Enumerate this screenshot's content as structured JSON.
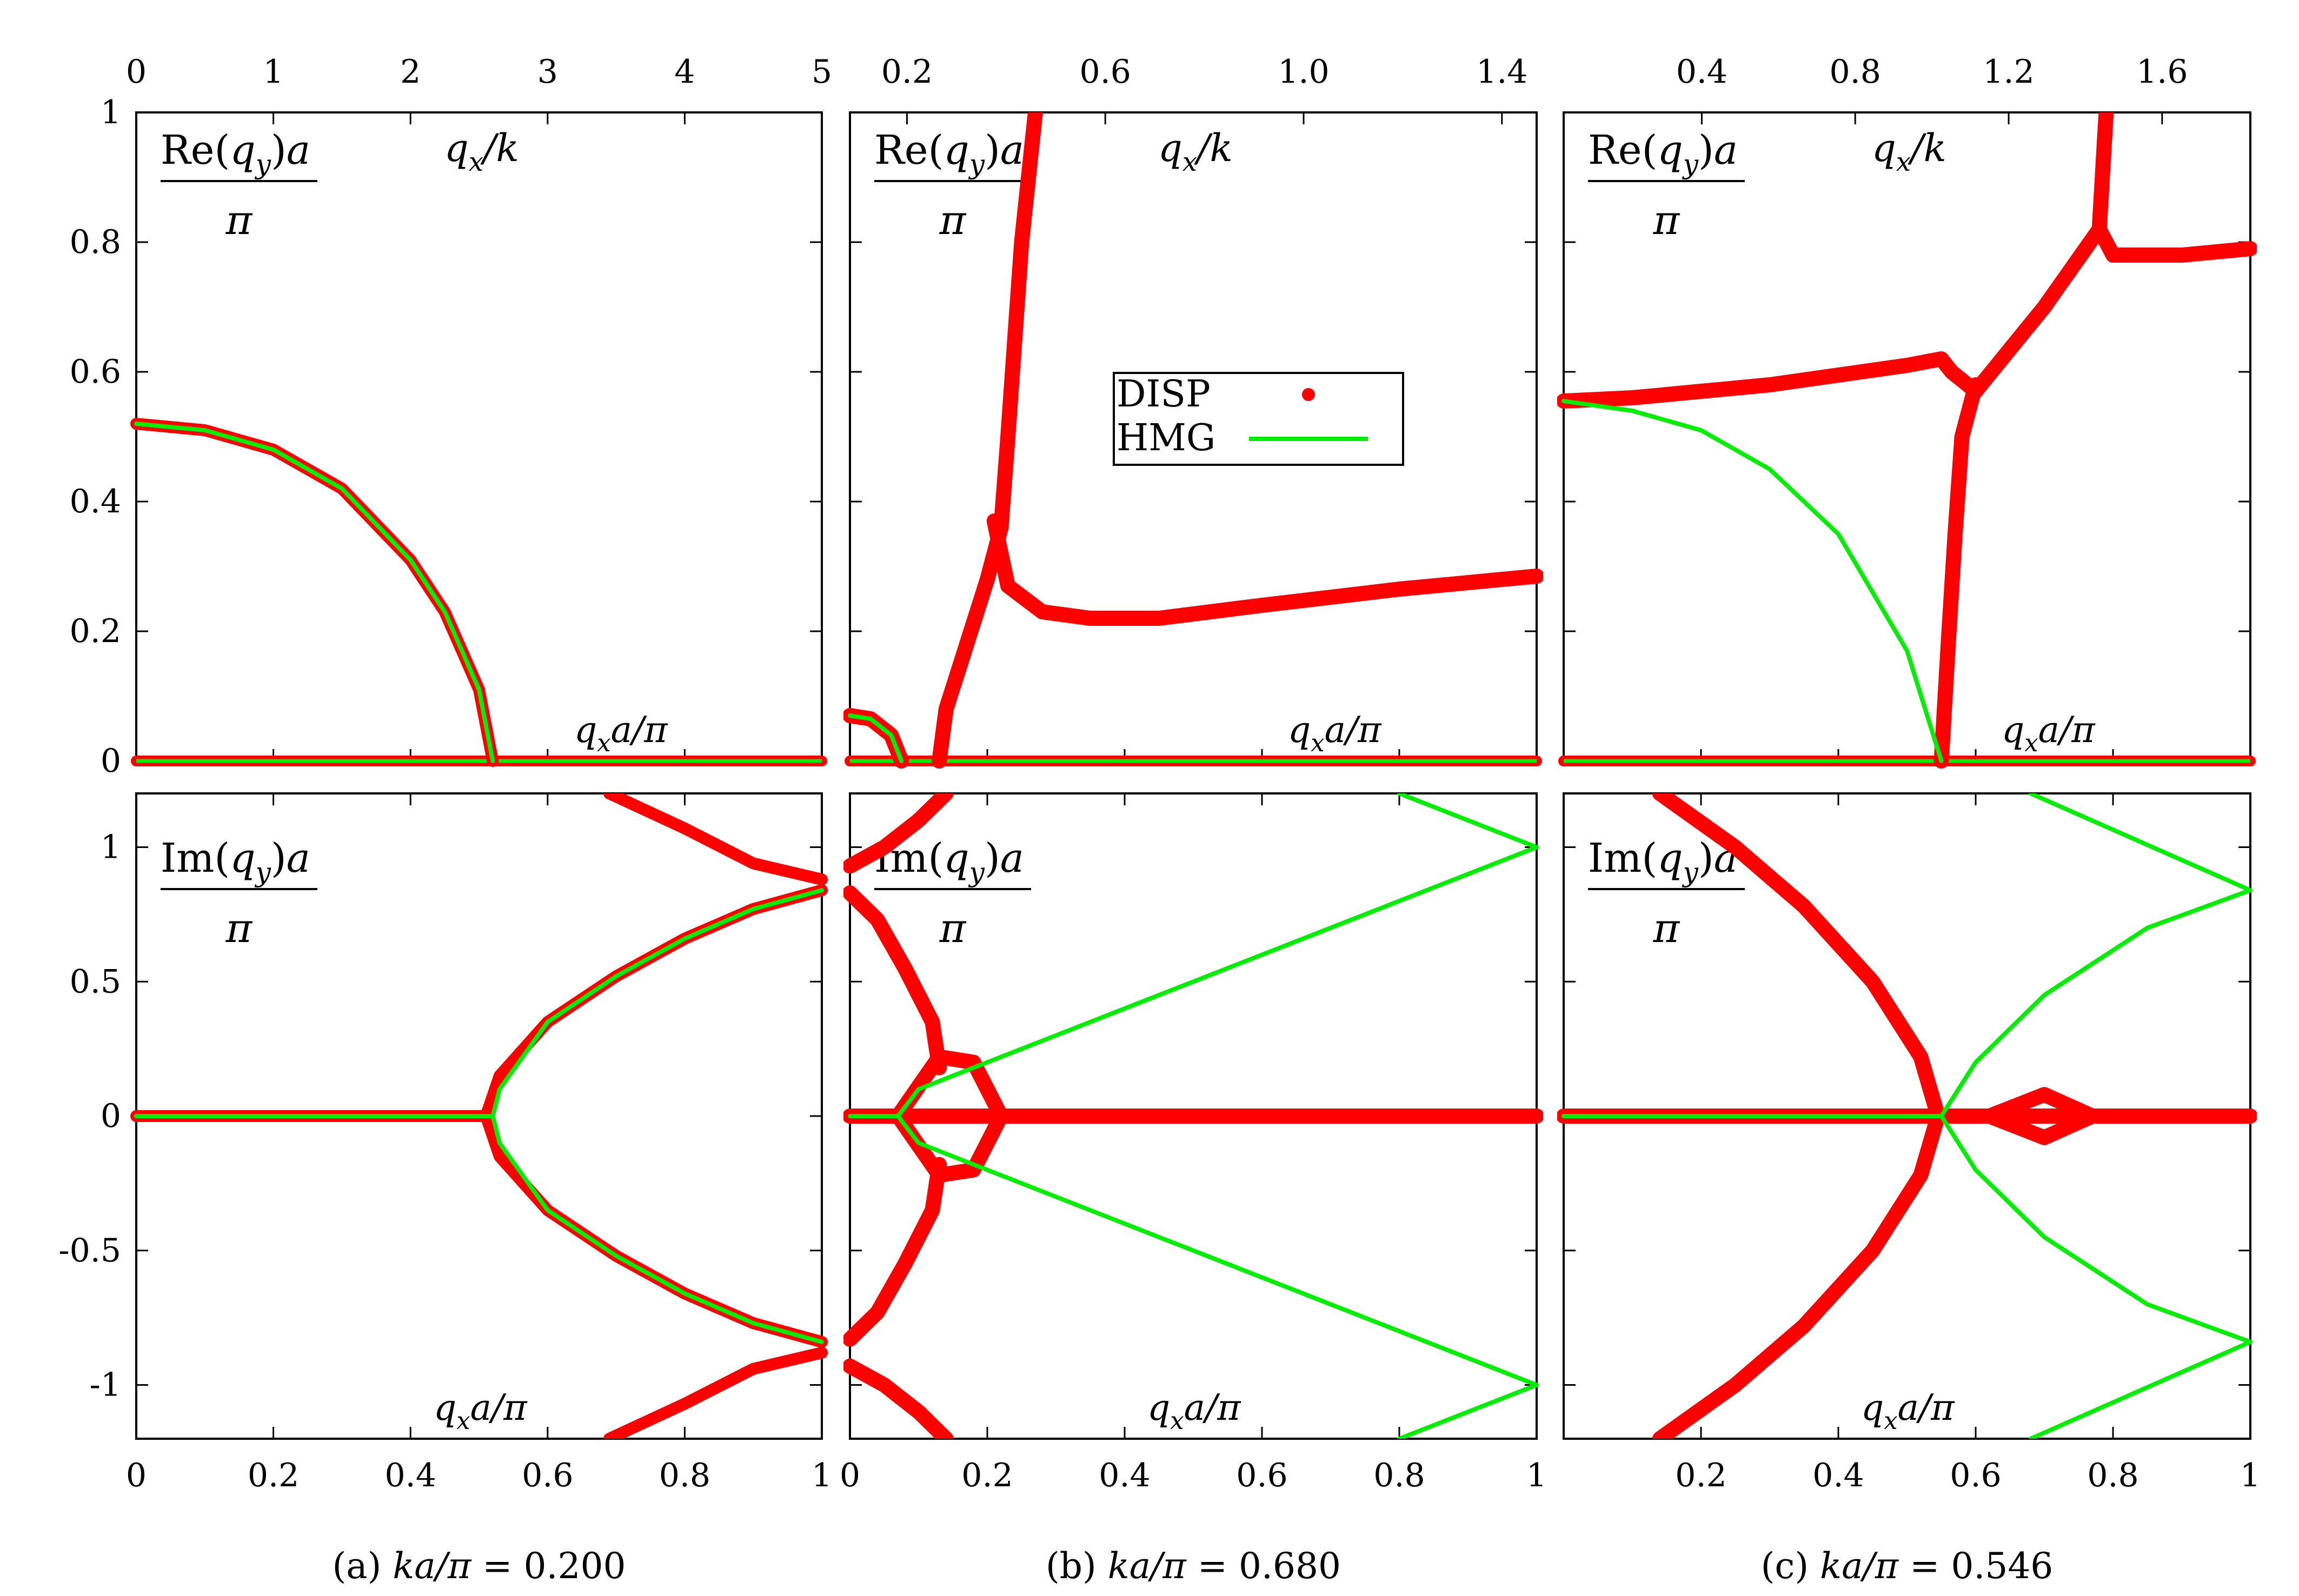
{
  "colors": {
    "disp": "#ff0000",
    "hmg": "#00ee00",
    "axis": "#000000"
  },
  "legend": {
    "disp_label": "DISP",
    "hmg_label": "HMG"
  },
  "annotations": {
    "re_label_num": "Re(q",
    "re_label_sub": "y",
    "re_label_tail": ")a",
    "im_label_num": "Im(q",
    "im_label_sub": "y",
    "im_label_tail": ")a",
    "pi": "π",
    "qx_over_k_q": "q",
    "qx_over_k_sub": "x",
    "qx_over_k_tail": "/k",
    "qxa_q": "q",
    "qxa_sub": "x",
    "qxa_tail": "a/π"
  },
  "y_ticks_top": [
    "0",
    "0.2",
    "0.4",
    "0.6",
    "0.8",
    "1"
  ],
  "y_ticks_bottom": [
    "-1",
    "-0.5",
    "0",
    "0.5",
    "1"
  ],
  "chart_data": [
    {
      "type": "line",
      "caption_prefix": "(a) ",
      "caption_math": "ka/π",
      "caption_value": " = 0.200",
      "xlim": [
        0,
        1
      ],
      "x_ticks": [
        "0",
        "0.2",
        "0.4",
        "0.6",
        "0.8",
        "1"
      ],
      "top_axis_ticks": [
        "0",
        "1",
        "2",
        "3",
        "4",
        "5"
      ],
      "ylim_re": [
        0,
        1
      ],
      "ylim_im": [
        -1.2,
        1.2
      ],
      "series": [
        {
          "name": "DISP",
          "panel": "re",
          "x": [
            0,
            0.1,
            0.2,
            0.3,
            0.4,
            0.45,
            0.5,
            0.52
          ],
          "y": [
            0.52,
            0.51,
            0.48,
            0.42,
            0.31,
            0.23,
            0.11,
            0
          ]
        },
        {
          "name": "HMG",
          "panel": "re",
          "x": [
            0,
            0.1,
            0.2,
            0.3,
            0.4,
            0.45,
            0.5,
            0.52
          ],
          "y": [
            0.52,
            0.51,
            0.48,
            0.42,
            0.31,
            0.23,
            0.11,
            0
          ]
        },
        {
          "name": "DISP",
          "panel": "im",
          "x": [
            0,
            0.51,
            0.53,
            0.6,
            0.7,
            0.8,
            0.9,
            1.0
          ],
          "y": [
            0,
            0,
            0.15,
            0.35,
            0.52,
            0.66,
            0.77,
            0.84
          ]
        },
        {
          "name": "DISP",
          "panel": "im",
          "x": [
            0.51,
            0.53,
            0.6,
            0.7,
            0.8,
            0.9,
            1.0
          ],
          "y": [
            0,
            -0.15,
            -0.35,
            -0.52,
            -0.66,
            -0.77,
            -0.84
          ]
        },
        {
          "name": "DISP",
          "panel": "im",
          "x": [
            0.69,
            0.8,
            0.9,
            1.0
          ],
          "y": [
            1.2,
            1.07,
            0.94,
            0.88
          ]
        },
        {
          "name": "DISP",
          "panel": "im",
          "x": [
            0.69,
            0.8,
            0.9,
            1.0
          ],
          "y": [
            -1.2,
            -1.07,
            -0.94,
            -0.88
          ]
        },
        {
          "name": "HMG",
          "panel": "im",
          "x": [
            0,
            0.52,
            0.53,
            0.6,
            0.7,
            0.8,
            0.9,
            1.0
          ],
          "y": [
            0,
            0,
            0.1,
            0.35,
            0.52,
            0.66,
            0.77,
            0.84
          ]
        },
        {
          "name": "HMG",
          "panel": "im",
          "x": [
            0.52,
            0.53,
            0.6,
            0.7,
            0.8,
            0.9,
            1.0
          ],
          "y": [
            0,
            -0.1,
            -0.35,
            -0.52,
            -0.66,
            -0.77,
            -0.84
          ]
        }
      ]
    },
    {
      "type": "line",
      "caption_prefix": "(b) ",
      "caption_math": "ka/π",
      "caption_value": " = 0.680",
      "xlim": [
        0,
        1
      ],
      "x_ticks": [
        "0",
        "0.2",
        "0.4",
        "0.6",
        "0.8",
        "1"
      ],
      "top_axis_ticks": [
        "0.2",
        "0.6",
        "1.0",
        "1.4"
      ],
      "ylim_re": [
        0,
        1
      ],
      "ylim_im": [
        -1.2,
        1.2
      ],
      "series": [
        {
          "name": "DISP",
          "panel": "re",
          "x": [
            0,
            0.03,
            0.06,
            0.075
          ],
          "y": [
            0.07,
            0.065,
            0.04,
            0
          ]
        },
        {
          "name": "DISP",
          "panel": "re",
          "x": [
            0.13,
            0.14,
            0.17,
            0.2,
            0.22,
            0.23,
            0.24,
            0.25,
            0.27
          ],
          "y": [
            0,
            0.08,
            0.18,
            0.28,
            0.36,
            0.5,
            0.65,
            0.8,
            1.0
          ]
        },
        {
          "name": "DISP",
          "panel": "re",
          "x": [
            0.21,
            0.23,
            0.28,
            0.35,
            0.45,
            0.6,
            0.8,
            1.0
          ],
          "y": [
            0.37,
            0.27,
            0.23,
            0.22,
            0.22,
            0.24,
            0.265,
            0.285
          ]
        },
        {
          "name": "HMG",
          "panel": "re",
          "x": [
            0,
            0.03,
            0.06,
            0.075
          ],
          "y": [
            0.07,
            0.065,
            0.04,
            0
          ]
        },
        {
          "name": "DISP",
          "panel": "im",
          "x": [
            0,
            0.07,
            1.0
          ],
          "y": [
            0,
            0,
            0
          ]
        },
        {
          "name": "DISP",
          "panel": "im",
          "x": [
            0,
            0.04,
            0.08,
            0.12,
            0.13
          ],
          "y": [
            0.83,
            0.73,
            0.55,
            0.35,
            0.18
          ]
        },
        {
          "name": "DISP",
          "panel": "im",
          "x": [
            0,
            0.04,
            0.08,
            0.12,
            0.13
          ],
          "y": [
            -0.83,
            -0.73,
            -0.55,
            -0.35,
            -0.18
          ]
        },
        {
          "name": "DISP",
          "panel": "im",
          "x": [
            0,
            0.05,
            0.1,
            0.14
          ],
          "y": [
            0.93,
            1.0,
            1.1,
            1.2
          ]
        },
        {
          "name": "DISP",
          "panel": "im",
          "x": [
            0,
            0.05,
            0.1,
            0.14
          ],
          "y": [
            -0.93,
            -1.0,
            -1.1,
            -1.2
          ]
        },
        {
          "name": "DISP",
          "panel": "im",
          "x": [
            0.07,
            0.13,
            0.18,
            0.22,
            0.18,
            0.13,
            0.07
          ],
          "y": [
            0,
            0.22,
            0.2,
            0,
            -0.2,
            -0.22,
            0
          ]
        },
        {
          "name": "HMG",
          "panel": "im",
          "x": [
            0,
            0.07,
            0.1,
            0.3,
            0.6,
            1.0
          ],
          "y": [
            0,
            0,
            0.1,
            0.3,
            0.6,
            1.0
          ]
        },
        {
          "name": "HMG",
          "panel": "im",
          "x": [
            0.07,
            0.1,
            0.3,
            0.6,
            1.0
          ],
          "y": [
            0,
            -0.1,
            -0.3,
            -0.6,
            -1.0
          ]
        },
        {
          "name": "HMG",
          "panel": "im",
          "x": [
            0.8,
            1.0
          ],
          "y": [
            1.2,
            1.0
          ]
        },
        {
          "name": "HMG",
          "panel": "im",
          "x": [
            0.8,
            1.0
          ],
          "y": [
            -1.2,
            -1.0
          ]
        }
      ]
    },
    {
      "type": "line",
      "caption_prefix": "(c) ",
      "caption_math": "ka/π",
      "caption_value": " = 0.546",
      "xlim": [
        0,
        1
      ],
      "x_ticks": [
        "0.2",
        "0.4",
        "0.6",
        "0.8",
        "1"
      ],
      "top_axis_ticks": [
        "0.4",
        "0.8",
        "1.2",
        "1.6"
      ],
      "ylim_re": [
        0,
        1
      ],
      "ylim_im": [
        -1.2,
        1.2
      ],
      "series": [
        {
          "name": "DISP",
          "panel": "re",
          "x": [
            0,
            0.1,
            0.2,
            0.3,
            0.4,
            0.5,
            0.55,
            0.565,
            0.6,
            0.7,
            0.78,
            0.79
          ],
          "y": [
            0.555,
            0.56,
            0.57,
            0.58,
            0.595,
            0.61,
            0.62,
            0.6,
            0.57,
            0.7,
            0.82,
            1.0
          ]
        },
        {
          "name": "DISP",
          "panel": "re",
          "x": [
            0.55,
            0.56,
            0.57,
            0.58,
            0.6
          ],
          "y": [
            0,
            0.18,
            0.35,
            0.5,
            0.58
          ]
        },
        {
          "name": "DISP",
          "panel": "re",
          "x": [
            0.78,
            0.8,
            0.9,
            1.0
          ],
          "y": [
            0.82,
            0.78,
            0.78,
            0.79
          ]
        },
        {
          "name": "HMG",
          "panel": "re",
          "x": [
            0,
            0.1,
            0.2,
            0.3,
            0.4,
            0.5,
            0.55
          ],
          "y": [
            0.555,
            0.54,
            0.51,
            0.45,
            0.35,
            0.17,
            0
          ]
        },
        {
          "name": "DISP",
          "panel": "im",
          "x": [
            0,
            0.545,
            1.0
          ],
          "y": [
            0,
            0,
            0
          ]
        },
        {
          "name": "DISP",
          "panel": "im",
          "x": [
            0.14,
            0.25,
            0.35,
            0.45,
            0.52,
            0.545
          ],
          "y": [
            1.2,
            1.0,
            0.78,
            0.5,
            0.22,
            0
          ]
        },
        {
          "name": "DISP",
          "panel": "im",
          "x": [
            0.14,
            0.25,
            0.35,
            0.45,
            0.52,
            0.545
          ],
          "y": [
            -1.2,
            -1.0,
            -0.78,
            -0.5,
            -0.22,
            0
          ]
        },
        {
          "name": "DISP",
          "panel": "im",
          "x": [
            0.62,
            0.7,
            0.77,
            0.7,
            0.62
          ],
          "y": [
            0,
            0.08,
            0,
            -0.08,
            0
          ]
        },
        {
          "name": "HMG",
          "panel": "im",
          "x": [
            0,
            0.55,
            0.6,
            0.7,
            0.85,
            1.0
          ],
          "y": [
            0,
            0,
            0.2,
            0.45,
            0.7,
            0.84
          ]
        },
        {
          "name": "HMG",
          "panel": "im",
          "x": [
            0.55,
            0.6,
            0.7,
            0.85,
            1.0
          ],
          "y": [
            0,
            -0.2,
            -0.45,
            -0.7,
            -0.84
          ]
        },
        {
          "name": "HMG",
          "panel": "im",
          "x": [
            0.68,
            1.0
          ],
          "y": [
            1.2,
            0.84
          ]
        },
        {
          "name": "HMG",
          "panel": "im",
          "x": [
            0.68,
            1.0
          ],
          "y": [
            -1.2,
            -0.84
          ]
        }
      ]
    }
  ]
}
